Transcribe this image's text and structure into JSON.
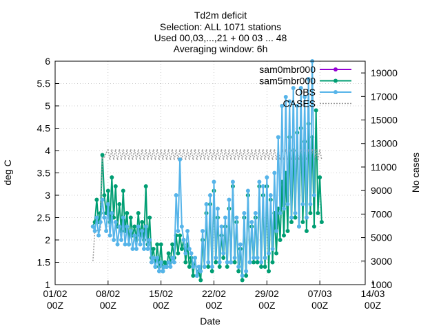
{
  "title_lines": [
    "Td2m deficit",
    "Selection: ALL   1071 stations",
    "Used 00,03,...,21 + 00 03 ... 48",
    "Averaging window:  6h"
  ],
  "chart_data": {
    "type": "line",
    "xlabel": "Date",
    "ylabel": "deg C",
    "y2label": "No cases",
    "ylim": [
      1,
      6
    ],
    "y2lim": [
      1000,
      20000
    ],
    "xlim": [
      "2023-02-01T00:00",
      "2023-03-14T00:00"
    ],
    "grid": true,
    "legend_position": "top-right",
    "x_tick_labels": [
      [
        "01/02",
        "00Z"
      ],
      [
        "08/02",
        "00Z"
      ],
      [
        "15/02",
        "00Z"
      ],
      [
        "22/02",
        "00Z"
      ],
      [
        "29/02",
        "00Z"
      ],
      [
        "07/03",
        "00Z"
      ],
      [
        "14/03",
        "00Z"
      ]
    ],
    "y_ticks": [
      "1",
      "1.5",
      "2",
      "2.5",
      "3",
      "3.5",
      "4",
      "4.5",
      "5",
      "5.5",
      "6"
    ],
    "y2_ticks": [
      "1000",
      "3000",
      "5000",
      "7000",
      "9000",
      "11000",
      "13000",
      "15000",
      "17000",
      "19000"
    ],
    "x_start": "2023-02-06T00:00",
    "x_step_hours": 6,
    "series": [
      {
        "name": "sam0mbr000",
        "color": "#9400d3",
        "marker": "circle",
        "axis": "y",
        "values": [
          2.3,
          2.5,
          2.9,
          2.4,
          2.7,
          3.8,
          3.0,
          2.6,
          3.2,
          2.5,
          3.3,
          2.6,
          3.1,
          2.2,
          2.8,
          2.3,
          3.1,
          2.1,
          2.7,
          2.0,
          2.5,
          2.0,
          2.4,
          2.0,
          2.7,
          2.2,
          2.5,
          2.0,
          3.1,
          2.0,
          2.6,
          1.8,
          1.9,
          1.5,
          1.7,
          1.5,
          1.8,
          1.4,
          1.6,
          1.5,
          1.7,
          1.5,
          1.8,
          1.6,
          2.0,
          1.7,
          2.2,
          1.8,
          2.0,
          1.6,
          1.9,
          1.5,
          1.7,
          1.3,
          1.5,
          1.2,
          1.4,
          1.2,
          1.9,
          1.5,
          2.5,
          1.5,
          2.8,
          1.4,
          3.0,
          1.6,
          2.4,
          1.4,
          2.2,
          1.7,
          2.4,
          1.5,
          2.8,
          1.6,
          3.1,
          1.6,
          2.5,
          1.4,
          1.9,
          1.2,
          2.6,
          1.3,
          3.0,
          1.6,
          2.3,
          1.6,
          2.5,
          1.6,
          3.1,
          1.5,
          3.0,
          1.5,
          3.1,
          1.4,
          2.9,
          1.6,
          2.7,
          1.8,
          2.8,
          2.1,
          3.4,
          2.2,
          3.6,
          2.3,
          4.4,
          2.5,
          4.1,
          2.6,
          4.5,
          2.4,
          4.6,
          2.5,
          4.3,
          2.3,
          4.7,
          2.7,
          4.4,
          2.4,
          4.8,
          2.7,
          3.5,
          2.4
        ],
        "hidden": true
      },
      {
        "name": "sam5mbr000",
        "color": "#009e73",
        "marker": "circle",
        "axis": "y",
        "values": [
          2.3,
          2.4,
          2.9,
          2.4,
          2.6,
          3.9,
          3.0,
          2.6,
          3.1,
          2.4,
          3.4,
          2.5,
          3.2,
          2.3,
          2.8,
          2.2,
          3.1,
          2.2,
          2.6,
          1.9,
          2.5,
          2.1,
          2.3,
          2.0,
          2.6,
          2.1,
          2.4,
          2.0,
          3.2,
          1.9,
          2.5,
          1.6,
          1.8,
          1.4,
          1.9,
          1.4,
          1.9,
          1.3,
          1.5,
          1.4,
          1.7,
          1.5,
          1.9,
          1.6,
          2.1,
          1.7,
          2.1,
          1.8,
          2.0,
          1.5,
          1.9,
          1.4,
          1.6,
          1.2,
          1.6,
          1.2,
          1.3,
          1.1,
          2.0,
          1.4,
          2.6,
          1.4,
          2.8,
          1.3,
          3.1,
          1.5,
          2.5,
          1.4,
          2.1,
          1.6,
          2.3,
          1.4,
          2.7,
          1.5,
          3.2,
          1.5,
          2.4,
          1.3,
          1.8,
          1.1,
          2.5,
          1.2,
          3.0,
          1.5,
          2.3,
          1.5,
          2.5,
          1.5,
          3.2,
          1.4,
          3.0,
          1.4,
          3.2,
          1.3,
          2.9,
          1.5,
          2.6,
          1.7,
          2.7,
          2.0,
          3.3,
          2.1,
          3.5,
          2.2,
          4.3,
          2.4,
          4.0,
          2.5,
          4.4,
          2.3,
          4.5,
          2.4,
          4.2,
          2.2,
          4.6,
          2.6,
          4.3,
          2.3,
          4.9,
          2.6,
          3.4,
          2.4
        ],
        "hidden": false
      },
      {
        "name": "OBS",
        "color": "#56b4e9",
        "marker": "circle",
        "axis": "y",
        "values": [
          2.3,
          2.2,
          2.5,
          2.1,
          2.4,
          2.9,
          2.5,
          2.2,
          2.8,
          2.1,
          2.6,
          2.0,
          2.4,
          1.9,
          2.3,
          2.0,
          2.5,
          1.9,
          2.3,
          1.9,
          2.2,
          1.8,
          2.1,
          1.8,
          2.3,
          1.9,
          2.2,
          1.8,
          2.3,
          1.8,
          2.0,
          1.5,
          1.6,
          1.4,
          1.6,
          1.3,
          1.5,
          1.3,
          1.4,
          1.4,
          1.5,
          1.4,
          1.6,
          1.5,
          3.0,
          2.2,
          3.8,
          2.3,
          2.0,
          1.7,
          2.2,
          1.8,
          1.7,
          1.4,
          1.6,
          1.2,
          1.4,
          1.3,
          2.2,
          1.4,
          2.8,
          1.5,
          3.0,
          1.4,
          3.3,
          1.6,
          2.7,
          1.5,
          2.3,
          1.7,
          2.5,
          1.5,
          2.9,
          1.5,
          3.3,
          1.6,
          2.5,
          1.4,
          1.9,
          1.2,
          2.6,
          1.3,
          3.1,
          1.5,
          2.4,
          1.6,
          2.6,
          1.6,
          3.3,
          1.5,
          3.2,
          1.6,
          3.4,
          1.7,
          3.0,
          1.8,
          3.5,
          2.2,
          4.3,
          2.6,
          5.0,
          2.7,
          5.2,
          2.8,
          5.1,
          2.5,
          5.4,
          2.6,
          5.0,
          2.3,
          5.4,
          2.8,
          5.2,
          2.5,
          5.6,
          2.8,
          6.0,
          3.0
        ],
        "hidden": false
      },
      {
        "name": "CASES",
        "color": "#999999",
        "marker": "dash",
        "axis": "y2",
        "values": [
          3000,
          5600,
          5600,
          5600,
          5600,
          11800,
          11800,
          12200,
          12500,
          11600,
          12500,
          11600,
          12500,
          11600,
          12500,
          11600,
          12500,
          11600,
          12500,
          11600,
          12500,
          11600,
          12500,
          11600,
          12500,
          11600,
          12500,
          11600,
          12500,
          11600,
          12500,
          11600,
          12500,
          11600,
          12500,
          11600,
          12500,
          11600,
          12500,
          11600,
          12500,
          11600,
          12500,
          11600,
          12500,
          11600,
          12500,
          11600,
          12500,
          11600,
          12500,
          11600,
          12500,
          11600,
          12500,
          11600,
          12500,
          11600,
          12500,
          11600,
          12500,
          11600,
          12500,
          11600,
          12500,
          11600,
          12500,
          11600,
          12500,
          11600,
          12500,
          11600,
          12500,
          11600,
          12500,
          11600,
          12500,
          11600,
          12500,
          11600,
          12500,
          11600,
          12500,
          11600,
          12500,
          11600,
          12500,
          11600,
          12500,
          11600,
          12500,
          11600,
          12500,
          11600,
          12500,
          11600,
          12500,
          11600,
          12500,
          11600,
          12500,
          11600,
          12500,
          11600,
          12500,
          11600,
          12500,
          11600,
          12500,
          11600,
          12500,
          11600,
          12500,
          11600,
          12500,
          11600,
          12500,
          11600,
          12500,
          11600,
          12500,
          11600
        ],
        "hidden": false
      }
    ]
  }
}
